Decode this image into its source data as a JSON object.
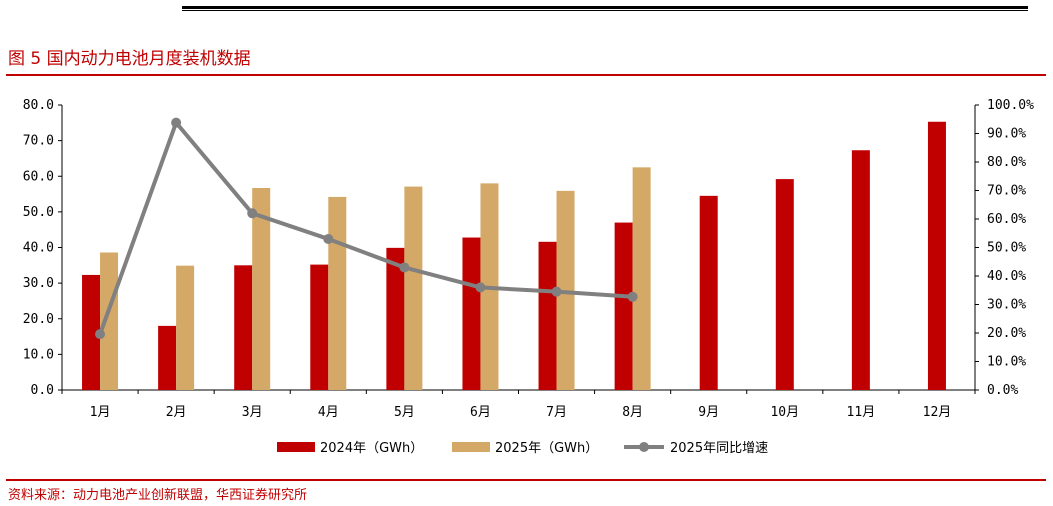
{
  "header": {
    "figure_title": "图 5  国内动力电池月度装机数据",
    "source": "资料来源：动力电池产业创新联盟，华西证券研究所"
  },
  "colors": {
    "series_2024": "#c00000",
    "series_2025": "#d4a867",
    "series_yoy": "#808080",
    "accent": "#c00000"
  },
  "chart_data": {
    "type": "bar",
    "categories": [
      "1月",
      "2月",
      "3月",
      "4月",
      "5月",
      "6月",
      "7月",
      "8月",
      "9月",
      "10月",
      "11月",
      "12月"
    ],
    "series": [
      {
        "name": "2024年（GWh）",
        "type": "bar",
        "axis": "left",
        "values": [
          32.3,
          18.0,
          35.0,
          35.2,
          39.9,
          42.8,
          41.6,
          47.0,
          54.5,
          59.2,
          67.3,
          75.3
        ]
      },
      {
        "name": "2025年（GWh）",
        "type": "bar",
        "axis": "left",
        "values": [
          38.6,
          34.9,
          56.7,
          54.2,
          57.1,
          58.0,
          55.9,
          62.5,
          null,
          null,
          null,
          null
        ]
      },
      {
        "name": "2025年同比增速",
        "type": "line",
        "axis": "right",
        "values": [
          19.6,
          93.8,
          62.0,
          53.0,
          43.0,
          36.0,
          34.5,
          32.7,
          null,
          null,
          null,
          null
        ]
      }
    ],
    "y_left": {
      "min": 0,
      "max": 80,
      "step": 10,
      "tick_labels": [
        "0.0",
        "10.0",
        "20.0",
        "30.0",
        "40.0",
        "50.0",
        "60.0",
        "70.0",
        "80.0"
      ]
    },
    "y_right": {
      "min": 0,
      "max": 100,
      "step": 10,
      "tick_labels": [
        "0.0%",
        "10.0%",
        "20.0%",
        "30.0%",
        "40.0%",
        "50.0%",
        "60.0%",
        "70.0%",
        "80.0%",
        "90.0%",
        "100.0%"
      ]
    },
    "grid": false,
    "legend_position": "bottom"
  }
}
